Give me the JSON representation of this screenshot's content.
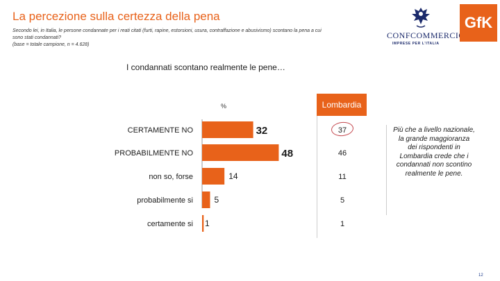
{
  "header": {
    "title": "La percezione sulla certezza della pena",
    "question_line1": "Secondo lei, in Italia, le persone condannate per i reati citati (furti, rapine, estorsioni, usura, contraffazione e abusivismo) scontano la pena a cui",
    "question_line2": "sono stati condannati?",
    "base_note": "(base = totale campione, n = 4.628)"
  },
  "logos": {
    "confcommercio_word": "CONFCOMMERCIO",
    "confcommercio_sub": "IMPRESE PER L'ITALIA",
    "gfk_word": "GfK"
  },
  "subtitle": "I condannati scontano realmente le pene…",
  "percent_label": "%",
  "lombardia_header": "Lombardia",
  "note": "Più che a livello nazionale, la grande maggioranza dei rispondenti in Lombardia crede che i condannati non scontino realmente le pene.",
  "page_number": "12",
  "colors": {
    "accent": "#e8621a",
    "navy": "#1b2a6b"
  },
  "chart_data": {
    "type": "bar",
    "orientation": "horizontal",
    "unit": "%",
    "categories": [
      "CERTAMENTE NO",
      "PROBABILMENTE NO",
      "non so, forse",
      "probabilmente si",
      "certamente si"
    ],
    "series": [
      {
        "name": "",
        "values": [
          32,
          48,
          14,
          5,
          1
        ]
      }
    ],
    "lombardia": {
      "label": "Lombardia",
      "values": [
        37,
        46,
        11,
        5,
        1
      ]
    },
    "xlim": [
      0,
      50
    ],
    "grid": false,
    "legend": "none"
  }
}
